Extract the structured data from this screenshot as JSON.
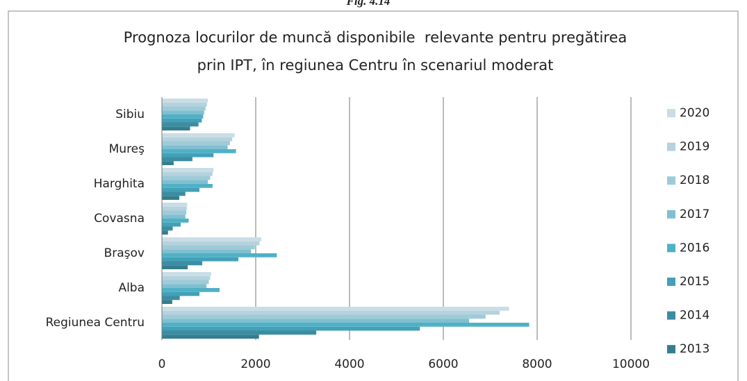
{
  "caption": "Fig. 4.14",
  "chart_data": {
    "type": "hbar",
    "title": [
      "Prognoza locurilor de muncă disponibile  relevante pentru pregătirea",
      "prin IPT, în regiunea Centru în scenariul moderat"
    ],
    "categories": [
      "Sibiu",
      "Mureş",
      "Harghita",
      "Covasna",
      "Braşov",
      "Alba",
      "Regiunea Centru"
    ],
    "series": [
      {
        "name": "2013",
        "color": "#357d8e",
        "values": [
          600,
          250,
          370,
          130,
          550,
          220,
          2070
        ]
      },
      {
        "name": "2014",
        "color": "#3b8da2",
        "values": [
          780,
          650,
          500,
          230,
          860,
          380,
          3290
        ]
      },
      {
        "name": "2015",
        "color": "#43a0b6",
        "values": [
          850,
          1100,
          800,
          400,
          1630,
          800,
          5500
        ]
      },
      {
        "name": "2016",
        "color": "#4fb1c7",
        "values": [
          880,
          1580,
          1080,
          570,
          2450,
          1230,
          7830
        ]
      },
      {
        "name": "2017",
        "color": "#80bfd0",
        "values": [
          900,
          1400,
          980,
          500,
          1900,
          950,
          6550
        ]
      },
      {
        "name": "2018",
        "color": "#9ecbd8",
        "values": [
          930,
          1450,
          1030,
          520,
          1980,
          1000,
          6900
        ]
      },
      {
        "name": "2019",
        "color": "#b5d2dd",
        "values": [
          960,
          1500,
          1080,
          530,
          2080,
          1030,
          7200
        ]
      },
      {
        "name": "2020",
        "color": "#c9dde6",
        "values": [
          980,
          1550,
          1100,
          540,
          2120,
          1050,
          7400
        ]
      }
    ],
    "xlim": [
      0,
      10000
    ],
    "xticks": [
      0,
      2000,
      4000,
      6000,
      8000,
      10000
    ],
    "grid": true,
    "legend": "right"
  }
}
